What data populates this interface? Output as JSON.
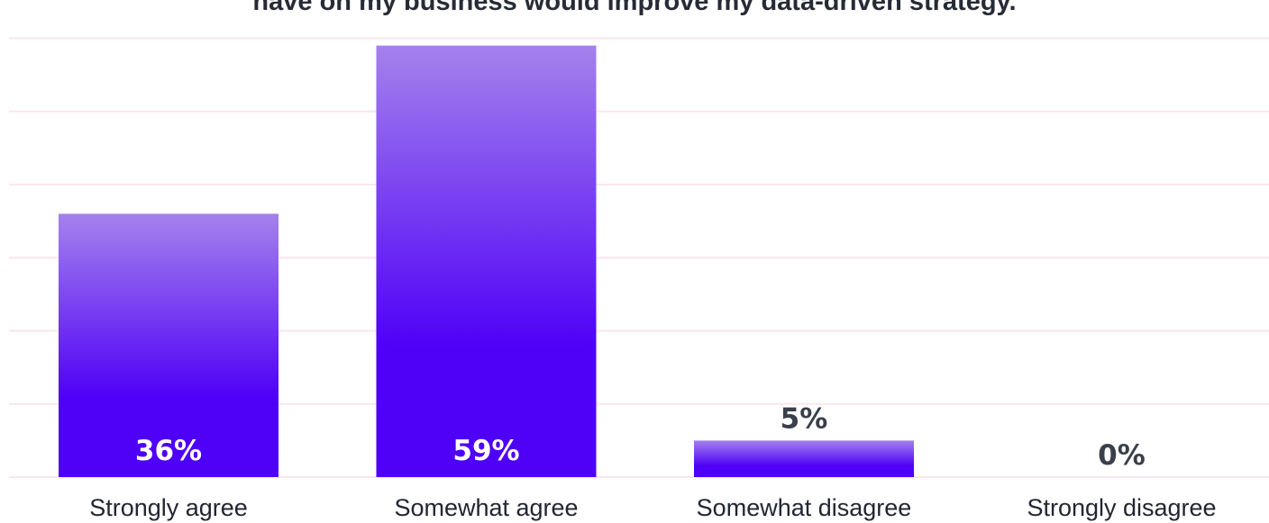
{
  "chart_data": {
    "type": "bar",
    "title": "have on my business would improve my data-driven strategy.",
    "xlabel": "",
    "ylabel": "",
    "ylim": [
      0,
      64
    ],
    "grid": true,
    "categories": [
      "Strongly agree",
      "Somewhat agree",
      "Somewhat disagree",
      "Strongly disagree"
    ],
    "values": [
      36,
      59,
      5,
      0
    ],
    "value_labels": [
      "36%",
      "59%",
      "5%",
      "0%"
    ],
    "colors": {
      "bar_top": "#a482ec",
      "bar_bottom": "#4f00f7",
      "gridline": "#fbe6ee",
      "label_inside": "#ffffff",
      "label_outside": "#3a3f4b"
    }
  }
}
